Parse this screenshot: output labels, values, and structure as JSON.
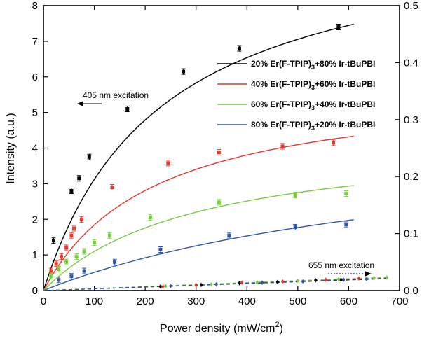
{
  "chart_data": {
    "type": "scatter",
    "xlabel_main": "Power density (mW/cm",
    "xlabel_sup": "2",
    "xlabel_tail": ")",
    "ylabel": "Intensity (a.u.)",
    "xlim": [
      0,
      700
    ],
    "ylim_left": [
      0,
      8
    ],
    "ylim_right": [
      0,
      0.5
    ],
    "x_ticks": [
      "0",
      "100",
      "200",
      "300",
      "400",
      "500",
      "600",
      "700"
    ],
    "y_left_ticks": [
      "0",
      "1",
      "2",
      "3",
      "4",
      "5",
      "6",
      "7",
      "8"
    ],
    "y_right_ticks": [
      "0.0",
      "0.1",
      "0.2",
      "0.3",
      "0.4",
      "0.5"
    ],
    "annotations": {
      "nm405": "405 nm excitation",
      "nm655": "655 nm excitation"
    },
    "series": [
      {
        "name": "20% Er(F-TPIP)3+80% Ir-tBuPBI",
        "legend_pre": "20% Er(F-TPIP)",
        "legend_sub": "3",
        "legend_post": "+80% Ir-tBuPBI",
        "color": "#000000",
        "axis": "left",
        "x": [
          20,
          55,
          70,
          90,
          165,
          275,
          385,
          580
        ],
        "y": [
          1.4,
          2.8,
          3.15,
          3.75,
          5.1,
          6.15,
          6.8,
          7.4
        ],
        "fit": {
          "a": 10.3,
          "b": 230
        }
      },
      {
        "name": "40% Er(F-TPIP)3+60% Ir-tBuPBI",
        "legend_pre": "40% Er(F-TPIP)",
        "legend_sub": "3",
        "legend_post": "+60% Ir-tBuPBI",
        "color": "#e8372c",
        "axis": "left",
        "x": [
          15,
          25,
          35,
          45,
          55,
          60,
          75,
          135,
          245,
          345,
          470,
          570
        ],
        "y": [
          0.55,
          0.75,
          0.95,
          1.2,
          1.55,
          1.75,
          2.0,
          2.9,
          3.58,
          3.88,
          4.05,
          4.15
        ],
        "fit": {
          "a": 5.9,
          "b": 220
        }
      },
      {
        "name": "60% Er(F-TPIP)3+40% Ir-tBuPBI",
        "legend_pre": "60% Er(F-TPIP)",
        "legend_sub": "3",
        "legend_post": "+40% Ir-tBuPBI",
        "color": "#7ac943",
        "axis": "left",
        "x": [
          15,
          30,
          45,
          65,
          80,
          100,
          130,
          210,
          345,
          495,
          595
        ],
        "y": [
          0.4,
          0.6,
          0.8,
          0.95,
          1.1,
          1.35,
          1.55,
          2.05,
          2.48,
          2.68,
          2.72
        ],
        "fit": {
          "a": 4.4,
          "b": 300
        }
      },
      {
        "name": "80% Er(F-TPIP)3+20% Ir-tBuPBI",
        "legend_pre": "80% Er(F-TPIP)",
        "legend_sub": "3",
        "legend_post": "+20% Ir-tBuPBI",
        "color": "#2f56a6",
        "axis": "left",
        "x": [
          30,
          55,
          80,
          140,
          230,
          365,
          495,
          595
        ],
        "y": [
          0.3,
          0.4,
          0.55,
          0.8,
          1.15,
          1.55,
          1.78,
          1.85
        ],
        "fit": {
          "a": 4.6,
          "b": 800
        }
      }
    ],
    "series_655": [
      {
        "color": "#000000",
        "x": [
          230,
          310,
          385,
          460,
          535,
          585
        ],
        "y": [
          0.007,
          0.01,
          0.013,
          0.015,
          0.018,
          0.019
        ],
        "slope": 3.1e-05
      },
      {
        "color": "#e8372c",
        "x": [
          235,
          300,
          390,
          470,
          555,
          620
        ],
        "y": [
          0.007,
          0.01,
          0.014,
          0.016,
          0.019,
          0.021
        ],
        "slope": 3.3e-05
      },
      {
        "color": "#7ac943",
        "x": [
          240,
          330,
          420,
          500,
          580,
          650,
          675
        ],
        "y": [
          0.008,
          0.011,
          0.014,
          0.017,
          0.02,
          0.022,
          0.023
        ],
        "slope": 3.5e-05
      },
      {
        "color": "#2f56a6",
        "x": [
          250,
          340,
          430,
          510,
          590,
          635
        ],
        "y": [
          0.008,
          0.011,
          0.014,
          0.016,
          0.019,
          0.02
        ],
        "slope": 3.2e-05
      }
    ]
  }
}
